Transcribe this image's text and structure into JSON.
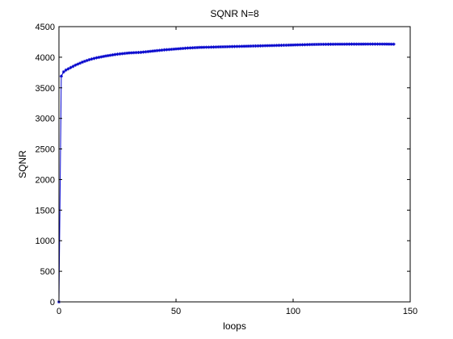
{
  "chart_data": {
    "type": "line",
    "title": "SQNR N=8",
    "xlabel": "loops",
    "ylabel": "SQNR",
    "xlim": [
      0,
      150
    ],
    "ylim": [
      0,
      4500
    ],
    "x_ticks": [
      0,
      50,
      100,
      150
    ],
    "y_ticks": [
      0,
      500,
      1000,
      1500,
      2000,
      2500,
      3000,
      3500,
      4000,
      4500
    ],
    "grid": false,
    "legend": "none",
    "series": [
      {
        "color": "#0000cc",
        "marker": "star",
        "points": [
          [
            0,
            0
          ],
          [
            1,
            3690
          ],
          [
            2,
            3760
          ],
          [
            3,
            3790
          ],
          [
            5,
            3830
          ],
          [
            7,
            3870
          ],
          [
            10,
            3920
          ],
          [
            13,
            3960
          ],
          [
            16,
            3990
          ],
          [
            20,
            4020
          ],
          [
            25,
            4050
          ],
          [
            30,
            4070
          ],
          [
            35,
            4080
          ],
          [
            40,
            4100
          ],
          [
            45,
            4120
          ],
          [
            50,
            4135
          ],
          [
            55,
            4150
          ],
          [
            60,
            4160
          ],
          [
            65,
            4165
          ],
          [
            70,
            4170
          ],
          [
            75,
            4175
          ],
          [
            80,
            4180
          ],
          [
            85,
            4185
          ],
          [
            90,
            4190
          ],
          [
            95,
            4195
          ],
          [
            100,
            4200
          ],
          [
            105,
            4205
          ],
          [
            110,
            4210
          ],
          [
            115,
            4212
          ],
          [
            120,
            4213
          ],
          [
            125,
            4214
          ],
          [
            130,
            4214
          ],
          [
            135,
            4215
          ],
          [
            140,
            4214
          ],
          [
            143,
            4213
          ]
        ]
      }
    ]
  }
}
